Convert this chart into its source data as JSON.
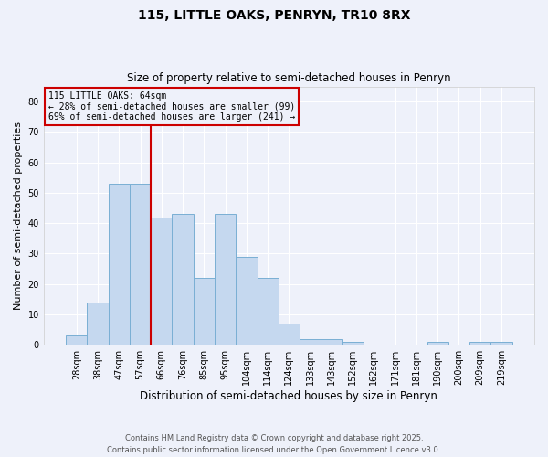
{
  "title1": "115, LITTLE OAKS, PENRYN, TR10 8RX",
  "title2": "Size of property relative to semi-detached houses in Penryn",
  "xlabel": "Distribution of semi-detached houses by size in Penryn",
  "ylabel": "Number of semi-detached properties",
  "bar_labels": [
    "28sqm",
    "38sqm",
    "47sqm",
    "57sqm",
    "66sqm",
    "76sqm",
    "85sqm",
    "95sqm",
    "104sqm",
    "114sqm",
    "124sqm",
    "133sqm",
    "143sqm",
    "152sqm",
    "162sqm",
    "171sqm",
    "181sqm",
    "190sqm",
    "200sqm",
    "209sqm",
    "219sqm"
  ],
  "bar_values": [
    3,
    14,
    53,
    53,
    42,
    43,
    22,
    43,
    29,
    22,
    7,
    2,
    2,
    1,
    0,
    0,
    0,
    1,
    0,
    1,
    1
  ],
  "bar_color": "#c5d8ef",
  "bar_edge_color": "#7aafd4",
  "property_size_idx": 4,
  "property_label": "115 LITTLE OAKS: 64sqm",
  "pct_smaller": 28,
  "n_smaller": 99,
  "pct_larger": 69,
  "n_larger": 241,
  "vline_color": "#cc0000",
  "ylim": [
    0,
    85
  ],
  "yticks": [
    0,
    10,
    20,
    30,
    40,
    50,
    60,
    70,
    80
  ],
  "footer1": "Contains HM Land Registry data © Crown copyright and database right 2025.",
  "footer2": "Contains public sector information licensed under the Open Government Licence v3.0.",
  "background_color": "#eef1fa",
  "grid_color": "#ffffff"
}
